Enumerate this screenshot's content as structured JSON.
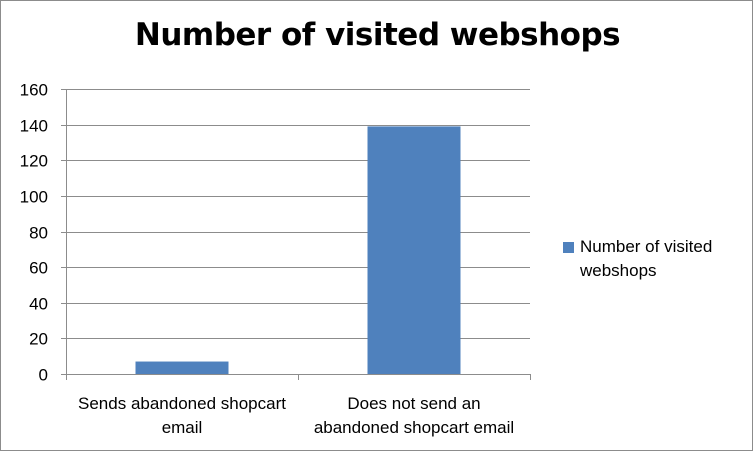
{
  "chart_data": {
    "type": "bar",
    "title": "Number of visited webshops",
    "categories": [
      "Sends abandoned shopcart email",
      "Does not send an abandoned shopcart email"
    ],
    "category_lines": [
      [
        "Sends abandoned shopcart",
        "email"
      ],
      [
        "Does not send an",
        "abandoned shopcart email"
      ]
    ],
    "series": [
      {
        "name": "Number of visited webshops",
        "values": [
          7,
          139
        ],
        "color": "#4f81bd"
      }
    ],
    "ylim": [
      0,
      160
    ],
    "yticks": [
      0,
      20,
      40,
      60,
      80,
      100,
      120,
      140,
      160
    ],
    "grid": true,
    "legend_position": "right",
    "legend_lines": [
      "Number of visited",
      "webshops"
    ],
    "xlabel": "",
    "ylabel": ""
  }
}
